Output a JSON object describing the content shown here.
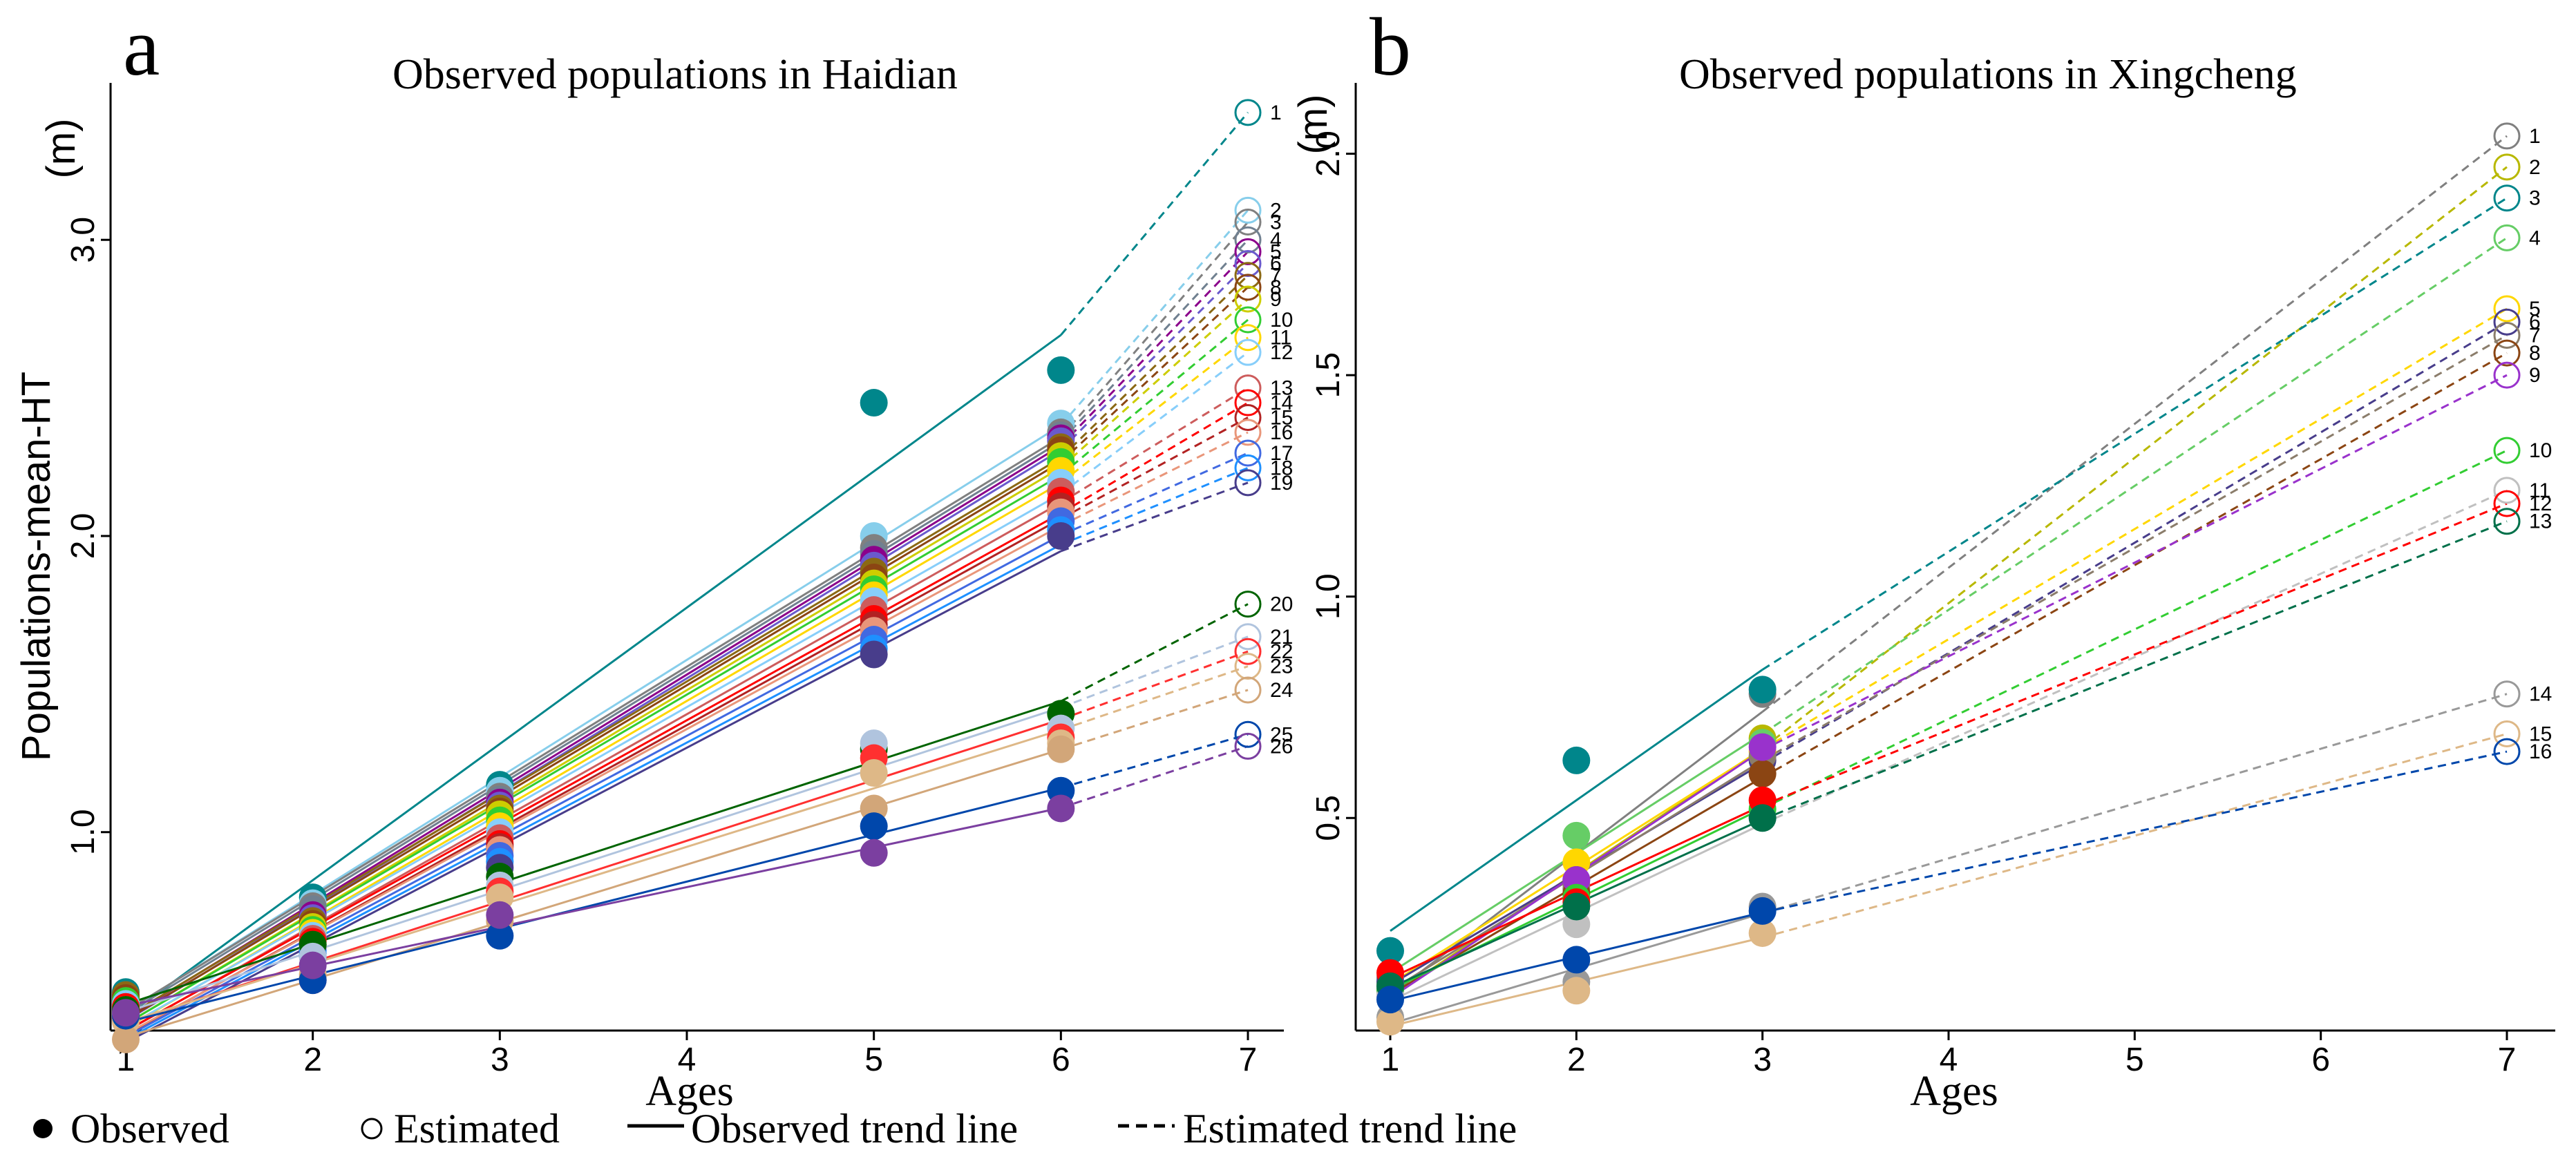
{
  "legend": {
    "observed": "Observed",
    "estimated": "Estimated",
    "observed_trend": "Observed trend line",
    "estimated_trend": "Estimated trend line"
  },
  "chart_data": [
    {
      "type": "scatter",
      "panel_label": "a",
      "title": "Observed populations in Haidian",
      "xlabel": "Ages",
      "ylabel": "Populations-mean-HT",
      "ylabel_unit": "(m)",
      "xlim": [
        0.95,
        7.25
      ],
      "ylim": [
        0.33,
        3.53
      ],
      "x_ticks": [
        1,
        2,
        3,
        4,
        5,
        6,
        7
      ],
      "y_ticks": [
        1.0,
        2.0,
        3.0
      ],
      "observed_x": [
        1,
        2,
        3,
        5,
        6
      ],
      "estimated_x": 7,
      "series": [
        {
          "label": "1",
          "color": "#00868b",
          "observed": [
            0.46,
            0.78,
            1.16,
            2.45,
            2.56
          ],
          "estimated": 3.43
        },
        {
          "label": "2",
          "color": "#87ceeb",
          "observed": [
            0.44,
            0.76,
            1.14,
            2.0,
            2.38
          ],
          "estimated": 3.1
        },
        {
          "label": "3",
          "color": "#808080",
          "observed": [
            0.45,
            0.75,
            1.12,
            1.96,
            2.35
          ],
          "estimated": 3.06
        },
        {
          "label": "4",
          "color": "#708090",
          "observed": [
            0.44,
            0.74,
            1.11,
            1.94,
            2.34
          ],
          "estimated": 3.0
        },
        {
          "label": "5",
          "color": "#8b008b",
          "observed": [
            0.43,
            0.72,
            1.1,
            1.92,
            2.33
          ],
          "estimated": 2.96
        },
        {
          "label": "6",
          "color": "#6a5acd",
          "observed": [
            0.42,
            0.71,
            1.09,
            1.9,
            2.32
          ],
          "estimated": 2.92
        },
        {
          "label": "7",
          "color": "#8b6914",
          "observed": [
            0.45,
            0.7,
            1.08,
            1.88,
            2.3
          ],
          "estimated": 2.88
        },
        {
          "label": "8",
          "color": "#8b4513",
          "observed": [
            0.44,
            0.69,
            1.07,
            1.86,
            2.29
          ],
          "estimated": 2.84
        },
        {
          "label": "9",
          "color": "#cdcd00",
          "observed": [
            0.42,
            0.68,
            1.06,
            1.84,
            2.27
          ],
          "estimated": 2.8
        },
        {
          "label": "10",
          "color": "#32cd32",
          "observed": [
            0.43,
            0.67,
            1.04,
            1.82,
            2.25
          ],
          "estimated": 2.73
        },
        {
          "label": "11",
          "color": "#ffd700",
          "observed": [
            0.41,
            0.66,
            1.02,
            1.8,
            2.22
          ],
          "estimated": 2.67
        },
        {
          "label": "12",
          "color": "#87cefa",
          "observed": [
            0.42,
            0.65,
            1.0,
            1.78,
            2.18
          ],
          "estimated": 2.62
        },
        {
          "label": "13",
          "color": "#cd5c5c",
          "observed": [
            0.4,
            0.64,
            0.98,
            1.75,
            2.15
          ],
          "estimated": 2.5
        },
        {
          "label": "14",
          "color": "#ff0000",
          "observed": [
            0.41,
            0.63,
            0.96,
            1.72,
            2.12
          ],
          "estimated": 2.45
        },
        {
          "label": "15",
          "color": "#b22222",
          "observed": [
            0.39,
            0.62,
            0.95,
            1.7,
            2.1
          ],
          "estimated": 2.4
        },
        {
          "label": "16",
          "color": "#e9967a",
          "observed": [
            0.4,
            0.61,
            0.94,
            1.68,
            2.08
          ],
          "estimated": 2.35
        },
        {
          "label": "17",
          "color": "#4169e1",
          "observed": [
            0.39,
            0.6,
            0.92,
            1.65,
            2.05
          ],
          "estimated": 2.28
        },
        {
          "label": "18",
          "color": "#1e90ff",
          "observed": [
            0.38,
            0.59,
            0.9,
            1.62,
            2.02
          ],
          "estimated": 2.23
        },
        {
          "label": "19",
          "color": "#483d8b",
          "observed": [
            0.37,
            0.58,
            0.88,
            1.6,
            2.0
          ],
          "estimated": 2.18
        },
        {
          "label": "20",
          "color": "#006400",
          "observed": [
            0.4,
            0.62,
            0.85,
            1.28,
            1.4
          ],
          "estimated": 1.77
        },
        {
          "label": "21",
          "color": "#b0c4de",
          "observed": [
            0.38,
            0.58,
            0.82,
            1.3,
            1.35
          ],
          "estimated": 1.66
        },
        {
          "label": "22",
          "color": "#ff3030",
          "observed": [
            0.37,
            0.5,
            0.8,
            1.25,
            1.32
          ],
          "estimated": 1.61
        },
        {
          "label": "23",
          "color": "#deb887",
          "observed": [
            0.36,
            0.52,
            0.78,
            1.2,
            1.3
          ],
          "estimated": 1.56
        },
        {
          "label": "24",
          "color": "#d2a679",
          "observed": [
            0.3,
            0.51,
            0.7,
            1.08,
            1.28
          ],
          "estimated": 1.48
        },
        {
          "label": "25",
          "color": "#0047ab",
          "observed": [
            0.38,
            0.5,
            0.65,
            1.02,
            1.14
          ],
          "estimated": 1.33
        },
        {
          "label": "26",
          "color": "#7b3fa0",
          "observed": [
            0.39,
            0.55,
            0.72,
            0.93,
            1.08
          ],
          "estimated": 1.29
        }
      ]
    },
    {
      "type": "scatter",
      "panel_label": "b",
      "title": "Observed populations in Xingcheng",
      "xlabel": "Ages",
      "ylabel": "",
      "ylabel_unit": "(m)",
      "xlim": [
        0.95,
        7.25
      ],
      "ylim": [
        0.02,
        2.16
      ],
      "x_ticks": [
        1,
        2,
        3,
        4,
        5,
        6,
        7
      ],
      "y_ticks": [
        0.5,
        1.0,
        1.5,
        2.0
      ],
      "observed_x": [
        1,
        2,
        3
      ],
      "estimated_x": 7,
      "series": [
        {
          "label": "1",
          "color": "#808080",
          "observed": [
            0.14,
            0.34,
            0.78
          ],
          "estimated": 2.04
        },
        {
          "label": "2",
          "color": "#b8b800",
          "observed": [
            0.12,
            0.33,
            0.68
          ],
          "estimated": 1.97
        },
        {
          "label": "3",
          "color": "#00868b",
          "observed": [
            0.2,
            0.63,
            0.79
          ],
          "estimated": 1.9
        },
        {
          "label": "4",
          "color": "#66cd66",
          "observed": [
            0.13,
            0.46,
            0.67
          ],
          "estimated": 1.81
        },
        {
          "label": "5",
          "color": "#ffd700",
          "observed": [
            0.12,
            0.4,
            0.65
          ],
          "estimated": 1.65
        },
        {
          "label": "6",
          "color": "#483d8b",
          "observed": [
            0.13,
            0.36,
            0.63
          ],
          "estimated": 1.62
        },
        {
          "label": "7",
          "color": "#8b7d6b",
          "observed": [
            0.12,
            0.35,
            0.64
          ],
          "estimated": 1.59
        },
        {
          "label": "8",
          "color": "#8b4513",
          "observed": [
            0.11,
            0.33,
            0.6
          ],
          "estimated": 1.55
        },
        {
          "label": "9",
          "color": "#9932cc",
          "observed": [
            0.1,
            0.36,
            0.66
          ],
          "estimated": 1.5
        },
        {
          "label": "10",
          "color": "#32cd32",
          "observed": [
            0.11,
            0.32,
            0.52
          ],
          "estimated": 1.33
        },
        {
          "label": "11",
          "color": "#c0c0c0",
          "observed": [
            0.1,
            0.26,
            0.5
          ],
          "estimated": 1.24
        },
        {
          "label": "12",
          "color": "#ff0000",
          "observed": [
            0.15,
            0.31,
            0.54
          ],
          "estimated": 1.21
        },
        {
          "label": "13",
          "color": "#00704a",
          "observed": [
            0.12,
            0.3,
            0.5
          ],
          "estimated": 1.17
        },
        {
          "label": "14",
          "color": "#999999",
          "observed": [
            0.05,
            0.13,
            0.3
          ],
          "estimated": 0.78
        },
        {
          "label": "15",
          "color": "#deb887",
          "observed": [
            0.04,
            0.11,
            0.24
          ],
          "estimated": 0.69
        },
        {
          "label": "16",
          "color": "#0047ab",
          "observed": [
            0.09,
            0.18,
            0.29
          ],
          "estimated": 0.65
        }
      ]
    }
  ]
}
